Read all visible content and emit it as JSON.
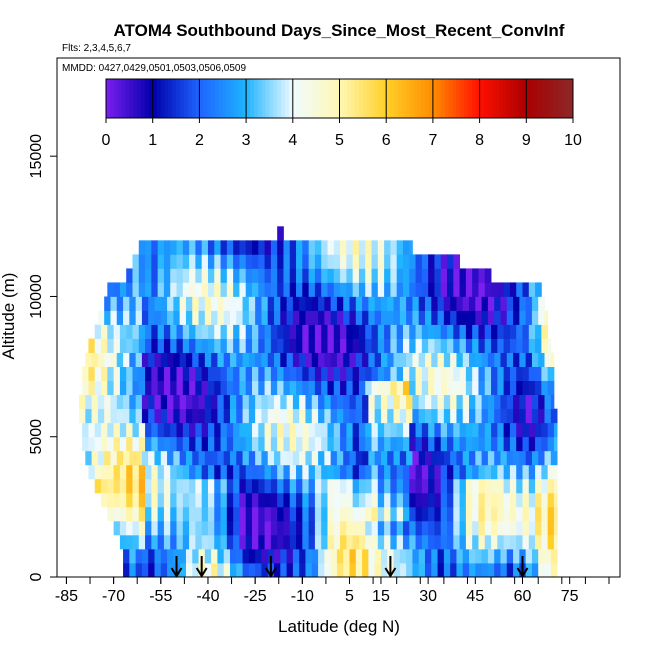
{
  "chart_data": {
    "type": "heatmap",
    "title": "ATOM4 Southbound Days_Since_Most_Recent_ConvInf",
    "flights_label": "Flts: 2,3,4,5,6,7",
    "dates_label": "MMDD: 0427,0429,0501,0503,0506,0509",
    "xlabel": "Latitude (deg N)",
    "ylabel": "Altitude (m)",
    "xlim": [
      -88,
      91
    ],
    "ylim": [
      0,
      18500
    ],
    "x_ticks": [
      -85,
      -70,
      -55,
      -40,
      -25,
      -10,
      5,
      15,
      30,
      45,
      60,
      75
    ],
    "x_tick_labels": [
      "-85",
      "-70",
      "-55",
      "-40",
      "-25",
      "-10",
      "5",
      "15",
      "30",
      "45",
      "60",
      "75"
    ],
    "y_ticks": [
      0,
      5000,
      10000,
      15000
    ],
    "y_tick_labels": [
      "0",
      "5000",
      "10000",
      "15000"
    ],
    "colorbar": {
      "min": 0,
      "max": 10,
      "ticks": [
        0,
        1,
        2,
        3,
        4,
        5,
        6,
        7,
        8,
        9,
        10
      ],
      "tick_labels": [
        "0",
        "1",
        "2",
        "3",
        "4",
        "5",
        "6",
        "7",
        "8",
        "9",
        "10"
      ],
      "colors": [
        "#7a1ff0",
        "#0000aa",
        "#1e64ff",
        "#1eb4ff",
        "#f0faff",
        "#fff8b4",
        "#ffd028",
        "#ff8c00",
        "#ff1000",
        "#aa0000",
        "#8c2828"
      ]
    },
    "profile_arrows_lat": [
      -50,
      -42,
      -20,
      18,
      60
    ],
    "altitude_bands_m": [
      250,
      750,
      1250,
      1750,
      2250,
      2750,
      3250,
      3750,
      4250,
      4750,
      5250,
      5750,
      6250,
      6750,
      7250,
      7750,
      8250,
      8750,
      9250,
      9750,
      10250,
      10750,
      11250,
      11750,
      12250
    ],
    "lat_extent_by_band": [
      [
        -67,
        71
      ],
      [
        -67,
        71
      ],
      [
        -68,
        71
      ],
      [
        -70,
        71
      ],
      [
        -72,
        71
      ],
      [
        -74,
        71
      ],
      [
        -76,
        71
      ],
      [
        -78,
        71
      ],
      [
        -79,
        71
      ],
      [
        -80,
        71
      ],
      [
        -80,
        71
      ],
      [
        -81,
        71
      ],
      [
        -81,
        70
      ],
      [
        -80,
        70
      ],
      [
        -80,
        70
      ],
      [
        -79,
        70
      ],
      [
        -78,
        69
      ],
      [
        -76,
        68
      ],
      [
        -75,
        68
      ],
      [
        -73,
        67
      ],
      [
        -72,
        66
      ],
      [
        -66,
        50
      ],
      [
        -64,
        40
      ],
      [
        -62,
        25
      ],
      [
        -18,
        -16
      ]
    ]
  }
}
